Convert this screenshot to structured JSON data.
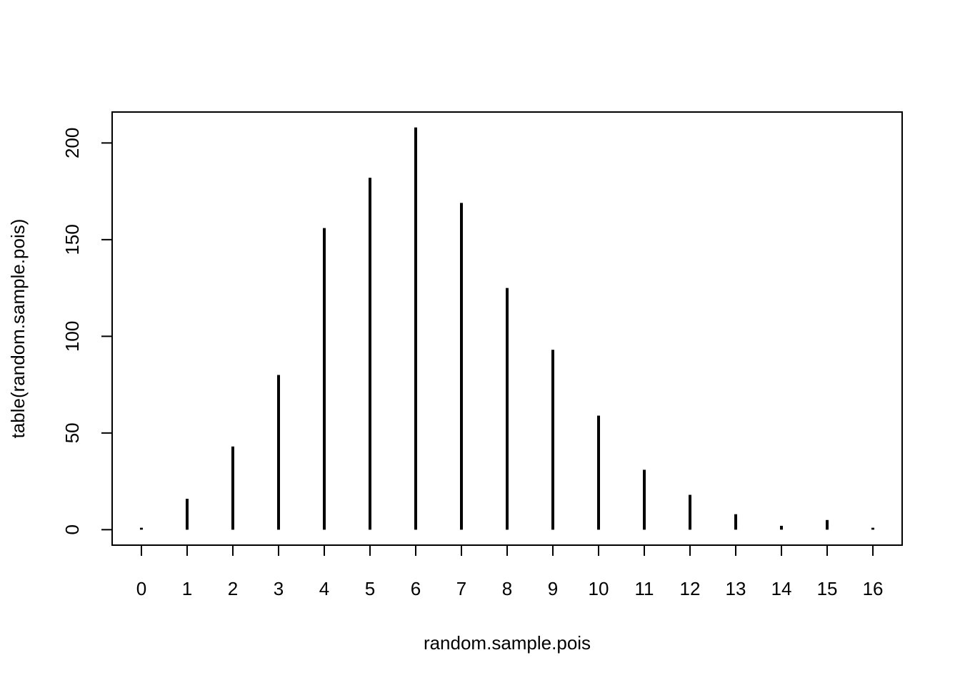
{
  "chart_data": {
    "type": "bar",
    "style": "histogram-lines",
    "categories": [
      "0",
      "1",
      "2",
      "3",
      "4",
      "5",
      "6",
      "7",
      "8",
      "9",
      "10",
      "11",
      "12",
      "13",
      "14",
      "15",
      "16"
    ],
    "x": [
      0,
      1,
      2,
      3,
      4,
      5,
      6,
      7,
      8,
      9,
      10,
      11,
      12,
      13,
      14,
      15,
      16
    ],
    "values": [
      1,
      16,
      43,
      80,
      156,
      182,
      208,
      169,
      125,
      93,
      59,
      31,
      18,
      8,
      2,
      5,
      1
    ],
    "xlabel": "random.sample.pois",
    "ylabel": "table(random.sample.pois)",
    "ylim": [
      -8,
      216
    ],
    "xlim": [
      -0.64,
      16.64
    ],
    "y_ticks": [
      0,
      50,
      100,
      150,
      200
    ],
    "grid": false,
    "legend": "none",
    "color": "#000000"
  }
}
